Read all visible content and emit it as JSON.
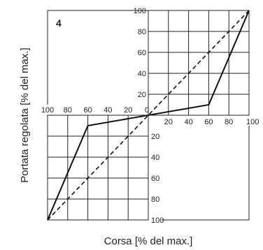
{
  "chart_data": {
    "type": "line",
    "panel_label": "4",
    "xlabel": "Corsa [% del max.]",
    "ylabel": "Portata regolata [% del max.]",
    "axis_ticks": {
      "top_y": [
        "20",
        "40",
        "60",
        "80",
        "100"
      ],
      "right_x": [
        "20",
        "40",
        "60",
        "80",
        "100"
      ],
      "left_x": [
        "100",
        "80",
        "60",
        "40",
        "20"
      ],
      "bottom_y": [
        "20",
        "40",
        "60",
        "80",
        "100"
      ],
      "origin": "0"
    },
    "xlim": [
      -100,
      100
    ],
    "ylim": [
      -100,
      100
    ],
    "grid": true,
    "series": [
      {
        "style": "solid",
        "x": [
          -100,
          -60,
          60,
          100
        ],
        "y": [
          -100,
          -10,
          10,
          100
        ]
      },
      {
        "style": "dashed",
        "x": [
          -100,
          100
        ],
        "y": [
          -100,
          100
        ]
      }
    ]
  }
}
